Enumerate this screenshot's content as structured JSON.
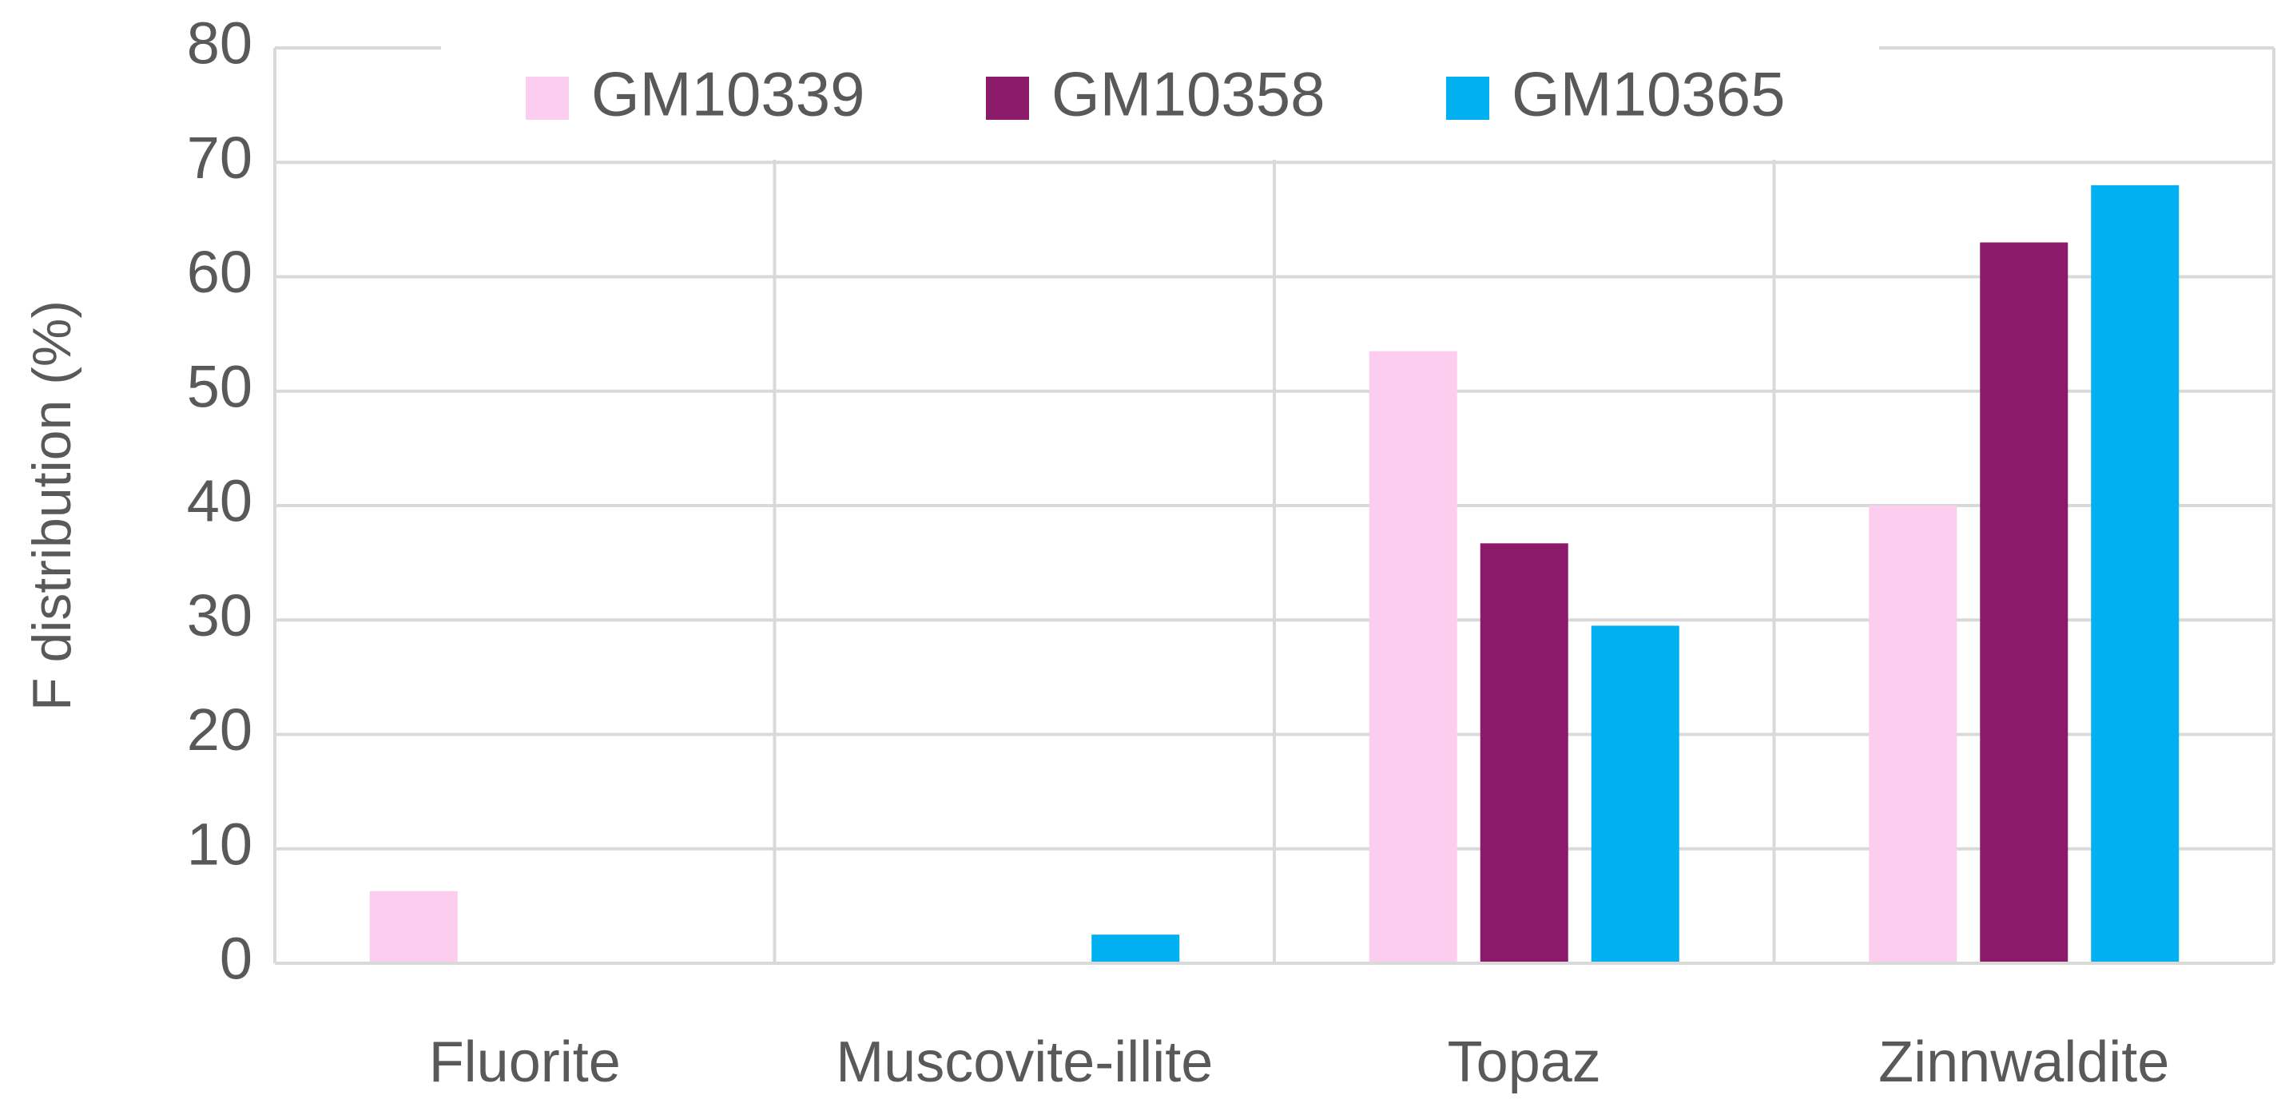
{
  "chart_data": {
    "type": "bar",
    "y_label": "F distribution (%)",
    "categories": [
      "Fluorite",
      "Muscovite-illite",
      "Topaz",
      "Zinnwaldite"
    ],
    "series": [
      {
        "name": "GM10339",
        "color": "#fccdee",
        "values": [
          6.3,
          0,
          53.5,
          40
        ]
      },
      {
        "name": "GM10358",
        "color": "#8b1a6b",
        "values": [
          0,
          0,
          36.7,
          63
        ]
      },
      {
        "name": "GM10365",
        "color": "#00b0f0",
        "values": [
          0,
          2.5,
          29.5,
          68
        ]
      }
    ],
    "ylim": [
      0,
      80
    ],
    "yticks": [
      0,
      10,
      20,
      30,
      40,
      50,
      60,
      70,
      80
    ],
    "grid": true,
    "legend": "top"
  }
}
